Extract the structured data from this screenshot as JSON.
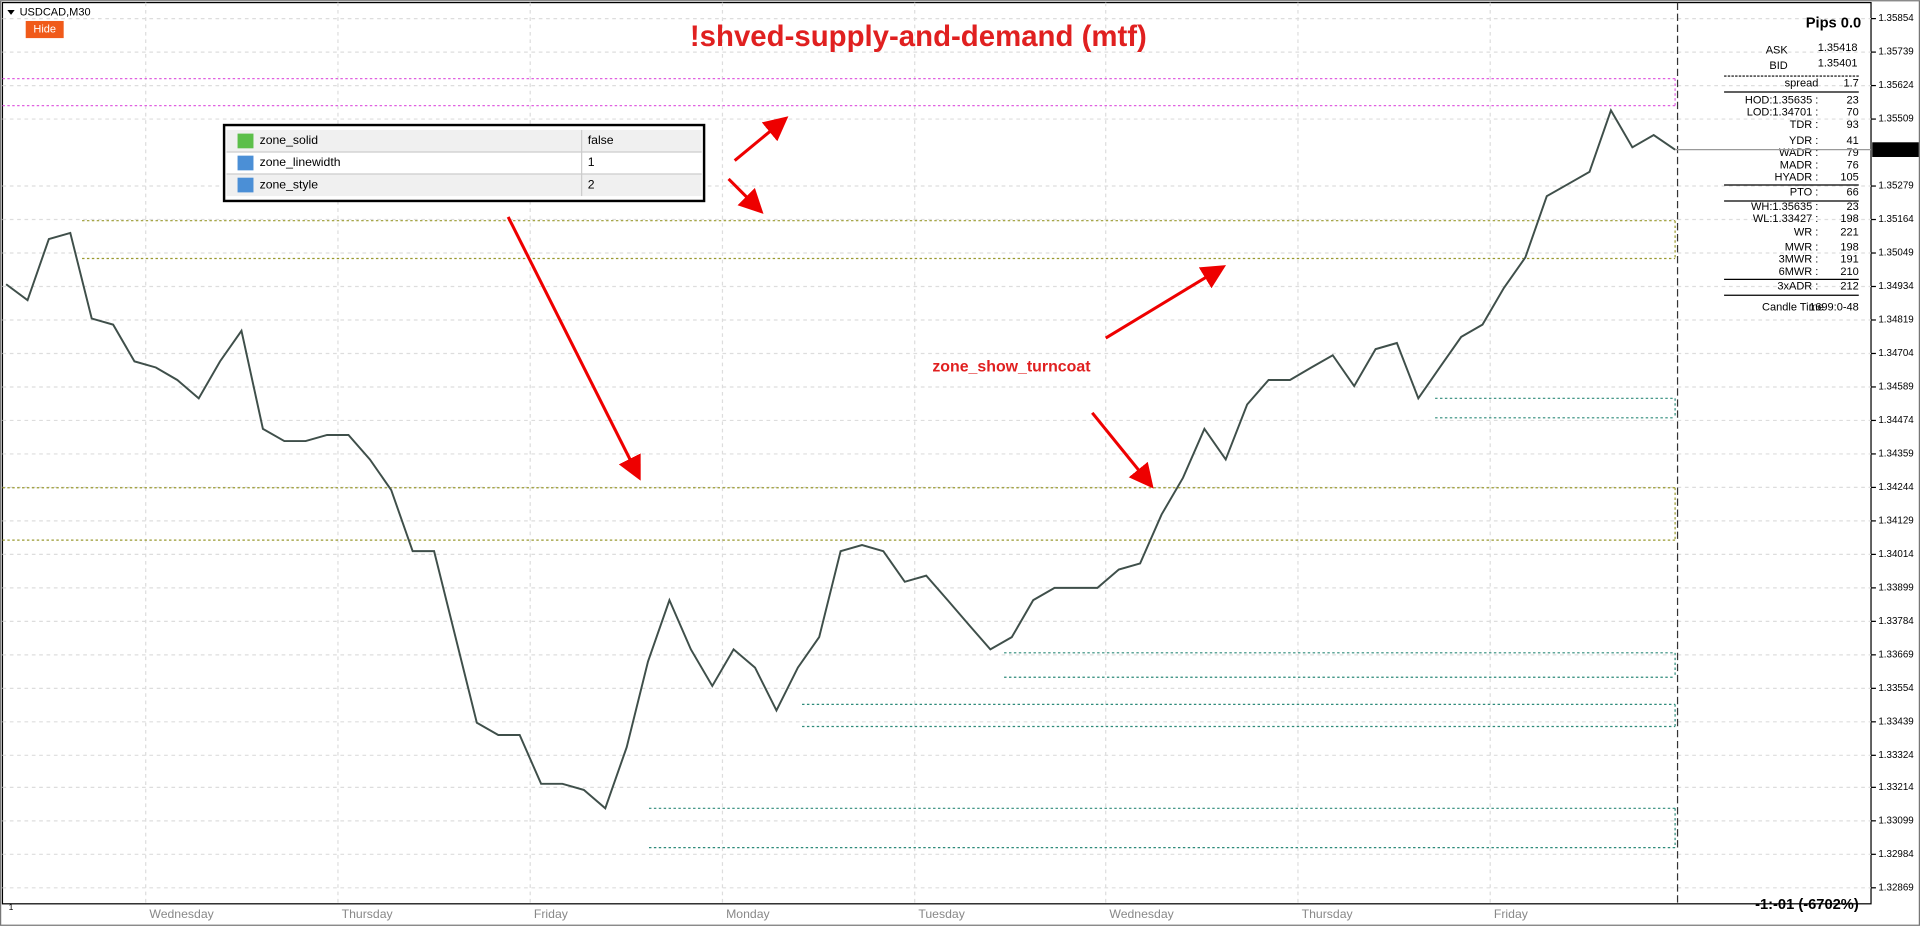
{
  "window": {
    "symbol": "USDCAD,M30",
    "hide_button": "Hide",
    "corner_label": "1"
  },
  "chart_data": {
    "type": "line",
    "title": "!shved-supply-and-demand (mtf)",
    "color": "#3f4f4a",
    "closes": [
      1.34942,
      1.34887,
      1.35097,
      1.35118,
      1.34824,
      1.34803,
      1.34677,
      1.34656,
      1.34613,
      1.3455,
      1.34677,
      1.34782,
      1.34445,
      1.34403,
      1.34403,
      1.34424,
      1.34424,
      1.3434,
      1.34235,
      1.34025,
      1.34025,
      1.3373,
      1.33436,
      1.33394,
      1.33394,
      1.33226,
      1.33226,
      1.33205,
      1.33142,
      1.33352,
      1.33646,
      1.33857,
      1.33688,
      1.33562,
      1.33688,
      1.33625,
      1.33478,
      1.33625,
      1.3373,
      1.34025,
      1.34046,
      1.34025,
      1.3392,
      1.33941,
      1.33857,
      1.33772,
      1.33688,
      1.3373,
      1.33857,
      1.33899,
      1.33899,
      1.33899,
      1.33962,
      1.33983,
      1.34151,
      1.34277,
      1.34445,
      1.3434,
      1.34529,
      1.34613,
      1.34613,
      1.34656,
      1.34698,
      1.34592,
      1.34719,
      1.3474,
      1.3455,
      1.34656,
      1.34761,
      1.34803,
      1.34929,
      1.35034,
      1.35244,
      1.35286,
      1.35328,
      1.35539,
      1.35412,
      1.35454,
      1.35404
    ],
    "ylim": [
      1.32814,
      1.35909
    ],
    "yticks": [
      1.35854,
      1.35739,
      1.35624,
      1.35509,
      1.35279,
      1.35164,
      1.35049,
      1.34934,
      1.34819,
      1.34704,
      1.34589,
      1.34474,
      1.34359,
      1.34244,
      1.34129,
      1.34014,
      1.33899,
      1.33784,
      1.33669,
      1.33554,
      1.33439,
      1.33324,
      1.33214,
      1.33099,
      1.32984,
      1.32869
    ],
    "current_price": 1.35404,
    "day_labels": [
      "Wednesday",
      "Thursday",
      "Friday",
      "Monday",
      "Tuesday",
      "Wednesday",
      "Thursday",
      "Friday"
    ],
    "grid": true,
    "zones": [
      {
        "color": "#e060e0",
        "prices": [
          1.35648,
          1.35555
        ]
      },
      {
        "color": "#9a9a30",
        "prices": [
          1.3516,
          1.3503
        ]
      },
      {
        "color": "#9a9a30",
        "prices": [
          1.34243,
          1.34063
        ]
      },
      {
        "color": "#2e8b7a",
        "prices": [
          1.3455,
          1.34483
        ]
      },
      {
        "color": "#2e8b7a",
        "prices": [
          1.33676,
          1.33592
        ]
      },
      {
        "color": "#2e8b7a",
        "prices": [
          1.33499,
          1.33423
        ]
      },
      {
        "color": "#2e8b7a",
        "prices": [
          1.33142,
          1.33007
        ]
      }
    ]
  },
  "properties": [
    {
      "name": "zone_solid",
      "value": "false"
    },
    {
      "name": "zone_linewidth",
      "value": 1
    },
    {
      "name": "zone_style",
      "value": 2
    }
  ],
  "annotation": "zone_show_turncoat",
  "info_panel": {
    "pips": "Pips 0.0",
    "ask": {
      "label": "ASK",
      "value": 1.35418
    },
    "bid": {
      "label": "BID",
      "value": 1.35401
    },
    "rows": [
      {
        "label": "spread",
        "value": 1.7
      },
      {
        "label": "HOD:1.35635 :",
        "value": 23
      },
      {
        "label": "LOD:1.34701 :",
        "value": 70
      },
      {
        "label": "TDR :",
        "value": 93
      },
      {
        "label": "YDR :",
        "value": 41
      },
      {
        "label": "WADR :",
        "value": 79
      },
      {
        "label": "MADR :",
        "value": 76
      },
      {
        "label": "HYADR :",
        "value": 105
      },
      {
        "label": "PTO :",
        "value": 66
      },
      {
        "label": "WH:1.35635 :",
        "value": 23
      },
      {
        "label": "WL:1.33427 :",
        "value": 198
      },
      {
        "label": "WR :",
        "value": 221
      },
      {
        "label": "MWR :",
        "value": 198
      },
      {
        "label": "3MWR :",
        "value": 191
      },
      {
        "label": "6MWR :",
        "value": 210
      },
      {
        "label": "3xADR :",
        "value": 212
      }
    ],
    "candle_time": {
      "label": "Candle Time",
      "value": "1699:0-48"
    }
  },
  "status": "-1:-01 (-6702%)"
}
